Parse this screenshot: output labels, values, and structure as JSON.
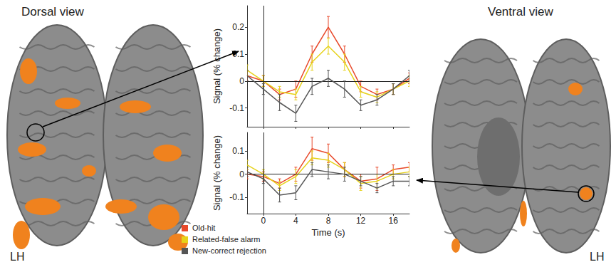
{
  "figure": {
    "panels": [
      {
        "title": "Dorsal view",
        "hemisphere_label": "LH"
      },
      {
        "title": "Ventral view",
        "hemisphere_label": "LH"
      }
    ]
  },
  "chart_data": [
    {
      "type": "line",
      "ylabel": "Signal (% change)",
      "x": [
        -2,
        0,
        2,
        4,
        6,
        8,
        10,
        12,
        14,
        16,
        18
      ],
      "series": [
        {
          "name": "Old-hit",
          "color": "#e8492b",
          "values": [
            0.02,
            0.0,
            -0.05,
            -0.03,
            0.1,
            0.2,
            0.1,
            -0.02,
            -0.05,
            -0.03,
            0.01
          ],
          "errors": [
            0.02,
            0.02,
            0.02,
            0.03,
            0.03,
            0.04,
            0.03,
            0.02,
            0.02,
            0.02,
            0.02
          ]
        },
        {
          "name": "Related-false alarm",
          "color": "#e6d21a",
          "values": [
            0.04,
            0.0,
            -0.04,
            -0.05,
            0.07,
            0.13,
            0.07,
            -0.04,
            -0.06,
            -0.03,
            0.0
          ],
          "errors": [
            0.02,
            0.02,
            0.02,
            0.02,
            0.03,
            0.03,
            0.03,
            0.02,
            0.02,
            0.02,
            0.02
          ]
        },
        {
          "name": "New-correct rejection",
          "color": "#555555",
          "values": [
            0.02,
            -0.03,
            -0.08,
            -0.12,
            -0.02,
            0.01,
            -0.03,
            -0.09,
            -0.07,
            -0.03,
            0.02
          ],
          "errors": [
            0.02,
            0.02,
            0.03,
            0.03,
            0.03,
            0.03,
            0.03,
            0.02,
            0.02,
            0.02,
            0.02
          ]
        }
      ],
      "xlim": [
        -2,
        18
      ],
      "ylim": [
        -0.17,
        0.28
      ],
      "xticks": [
        0,
        4,
        8,
        12,
        16
      ],
      "yticks": [
        -0.1,
        0,
        0.1,
        0.2
      ],
      "tick_labels": "y",
      "grid": false
    },
    {
      "type": "line",
      "ylabel": "Signal (% change)",
      "xlabel": "Time (s)",
      "x": [
        -2,
        0,
        2,
        4,
        6,
        8,
        10,
        12,
        14,
        16,
        18
      ],
      "series": [
        {
          "name": "Old-hit",
          "color": "#e8492b",
          "values": [
            0.0,
            -0.01,
            -0.04,
            0.0,
            0.11,
            0.09,
            0.02,
            -0.03,
            -0.02,
            0.02,
            0.03
          ],
          "errors": [
            0.02,
            0.02,
            0.02,
            0.03,
            0.05,
            0.04,
            0.03,
            0.03,
            0.05,
            0.02,
            0.02
          ]
        },
        {
          "name": "Related-false alarm",
          "color": "#e6d21a",
          "values": [
            0.04,
            0.0,
            -0.05,
            -0.01,
            0.07,
            0.06,
            0.02,
            -0.04,
            -0.03,
            0.0,
            0.01
          ],
          "errors": [
            0.02,
            0.02,
            0.02,
            0.03,
            0.03,
            0.03,
            0.03,
            0.03,
            0.03,
            0.02,
            0.02
          ]
        },
        {
          "name": "New-correct rejection",
          "color": "#555555",
          "values": [
            0.01,
            -0.02,
            -0.09,
            -0.08,
            0.02,
            0.01,
            0.0,
            -0.03,
            -0.06,
            -0.03,
            -0.03
          ],
          "errors": [
            0.02,
            0.02,
            0.03,
            0.03,
            0.03,
            0.03,
            0.03,
            0.02,
            0.02,
            0.02,
            0.02
          ]
        }
      ],
      "xlim": [
        -2,
        18
      ],
      "ylim": [
        -0.17,
        0.18
      ],
      "xticks": [
        0,
        4,
        8,
        12,
        16
      ],
      "yticks": [
        -0.1,
        0,
        0.1
      ],
      "grid": false,
      "legend": "lower left"
    }
  ]
}
